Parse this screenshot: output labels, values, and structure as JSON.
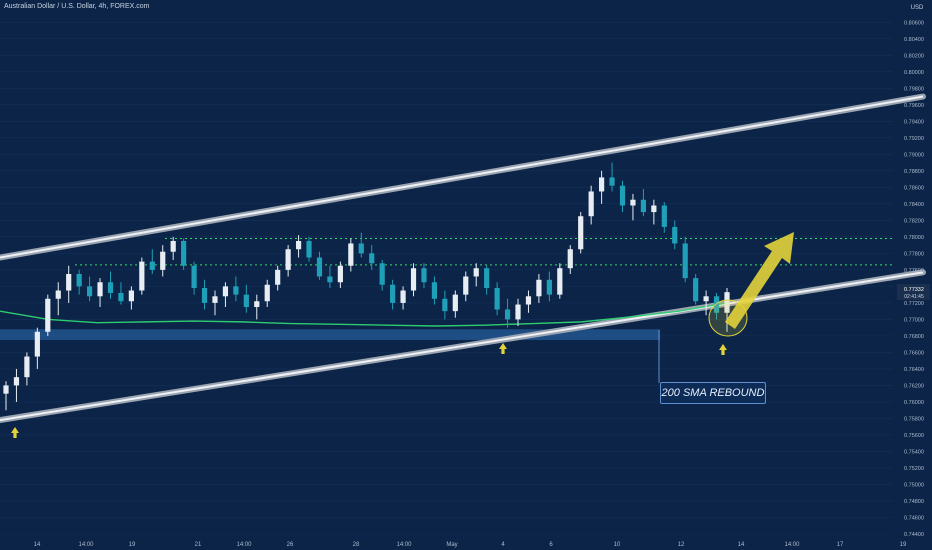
{
  "header": {
    "title": "Australian Dollar / U.S. Dollar, 4h, FOREX.com"
  },
  "axis": {
    "currency": "USD",
    "price_ticks": [
      "0.80600",
      "0.80400",
      "0.80200",
      "0.80000",
      "0.79800",
      "0.79600",
      "0.79400",
      "0.79200",
      "0.79000",
      "0.78800",
      "0.78600",
      "0.78400",
      "0.78200",
      "0.78000",
      "0.77800",
      "0.77600",
      "0.77400",
      "0.77200",
      "0.77000",
      "0.76800",
      "0.76600",
      "0.76400",
      "0.76200",
      "0.76000",
      "0.75800",
      "0.75600",
      "0.75400",
      "0.75200",
      "0.75000",
      "0.74800",
      "0.74600",
      "0.74400"
    ],
    "time_ticks": [
      "14",
      "14:00",
      "19",
      "21",
      "14:00",
      "26",
      "28",
      "14:00",
      "May",
      "4",
      "6",
      "10",
      "12",
      "14",
      "14:00",
      "17",
      "19"
    ],
    "current_price": "0.77332",
    "countdown": "02:41:45"
  },
  "annotation": {
    "label": "200 SMA REBOUND"
  },
  "colors": {
    "background": "#0b2447",
    "up": "#e8edf3",
    "down": "#1fa0b8",
    "sma": "#2ecc71",
    "arrow": "#e3d33a",
    "channel": "#c8ccd4",
    "level": "#3bd86b"
  },
  "chart_data": {
    "type": "candlestick",
    "title": "Australian Dollar / U.S. Dollar, 4h, FOREX.com",
    "ylabel": "USD",
    "ylim": [
      0.744,
      0.807
    ],
    "levels": [
      0.7798,
      0.7766
    ],
    "support_zone": [
      0.7675,
      0.7688
    ],
    "channel_upper": [
      [
        0.7775,
        0.797
      ]
    ],
    "channel_lower": [
      [
        0.7578,
        0.7757
      ]
    ],
    "sma200": [
      0.771,
      0.77,
      0.7696,
      0.7697,
      0.7698,
      0.7697,
      0.7695,
      0.7694,
      0.7693,
      0.7692,
      0.7693,
      0.7695,
      0.7697,
      0.7703,
      0.771,
      0.772
    ],
    "candles": [
      {
        "o": 0.761,
        "h": 0.7625,
        "l": 0.759,
        "c": 0.762
      },
      {
        "o": 0.762,
        "h": 0.764,
        "l": 0.76,
        "c": 0.763
      },
      {
        "o": 0.763,
        "h": 0.766,
        "l": 0.762,
        "c": 0.7655
      },
      {
        "o": 0.7655,
        "h": 0.769,
        "l": 0.764,
        "c": 0.7685
      },
      {
        "o": 0.7685,
        "h": 0.773,
        "l": 0.768,
        "c": 0.7725
      },
      {
        "o": 0.7725,
        "h": 0.7745,
        "l": 0.7705,
        "c": 0.7735
      },
      {
        "o": 0.7735,
        "h": 0.7765,
        "l": 0.772,
        "c": 0.7755
      },
      {
        "o": 0.7755,
        "h": 0.776,
        "l": 0.773,
        "c": 0.774
      },
      {
        "o": 0.774,
        "h": 0.7752,
        "l": 0.7722,
        "c": 0.7728
      },
      {
        "o": 0.7728,
        "h": 0.775,
        "l": 0.7715,
        "c": 0.7745
      },
      {
        "o": 0.7745,
        "h": 0.7758,
        "l": 0.7725,
        "c": 0.7732
      },
      {
        "o": 0.7732,
        "h": 0.7745,
        "l": 0.7718,
        "c": 0.7722
      },
      {
        "o": 0.7722,
        "h": 0.774,
        "l": 0.7712,
        "c": 0.7735
      },
      {
        "o": 0.7735,
        "h": 0.7775,
        "l": 0.773,
        "c": 0.777
      },
      {
        "o": 0.777,
        "h": 0.7785,
        "l": 0.7755,
        "c": 0.776
      },
      {
        "o": 0.776,
        "h": 0.779,
        "l": 0.7752,
        "c": 0.7782
      },
      {
        "o": 0.7782,
        "h": 0.78,
        "l": 0.7772,
        "c": 0.7795
      },
      {
        "o": 0.7795,
        "h": 0.7798,
        "l": 0.776,
        "c": 0.7765
      },
      {
        "o": 0.7765,
        "h": 0.777,
        "l": 0.773,
        "c": 0.7738
      },
      {
        "o": 0.7738,
        "h": 0.7748,
        "l": 0.7712,
        "c": 0.772
      },
      {
        "o": 0.772,
        "h": 0.7735,
        "l": 0.7705,
        "c": 0.7728
      },
      {
        "o": 0.7728,
        "h": 0.7745,
        "l": 0.7715,
        "c": 0.774
      },
      {
        "o": 0.774,
        "h": 0.7752,
        "l": 0.7722,
        "c": 0.773
      },
      {
        "o": 0.773,
        "h": 0.7742,
        "l": 0.7708,
        "c": 0.7715
      },
      {
        "o": 0.7715,
        "h": 0.773,
        "l": 0.77,
        "c": 0.7722
      },
      {
        "o": 0.7722,
        "h": 0.7748,
        "l": 0.7715,
        "c": 0.7742
      },
      {
        "o": 0.7742,
        "h": 0.7765,
        "l": 0.7735,
        "c": 0.776
      },
      {
        "o": 0.776,
        "h": 0.779,
        "l": 0.7752,
        "c": 0.7785
      },
      {
        "o": 0.7785,
        "h": 0.7802,
        "l": 0.7775,
        "c": 0.7795
      },
      {
        "o": 0.7795,
        "h": 0.78,
        "l": 0.777,
        "c": 0.7775
      },
      {
        "o": 0.7775,
        "h": 0.7782,
        "l": 0.7748,
        "c": 0.7752
      },
      {
        "o": 0.7752,
        "h": 0.7765,
        "l": 0.7738,
        "c": 0.7745
      },
      {
        "o": 0.7745,
        "h": 0.777,
        "l": 0.7738,
        "c": 0.7765
      },
      {
        "o": 0.7765,
        "h": 0.7798,
        "l": 0.7758,
        "c": 0.7792
      },
      {
        "o": 0.7792,
        "h": 0.7805,
        "l": 0.7775,
        "c": 0.778
      },
      {
        "o": 0.778,
        "h": 0.779,
        "l": 0.776,
        "c": 0.7768
      },
      {
        "o": 0.7768,
        "h": 0.7772,
        "l": 0.7735,
        "c": 0.7742
      },
      {
        "o": 0.7742,
        "h": 0.7748,
        "l": 0.7712,
        "c": 0.772
      },
      {
        "o": 0.772,
        "h": 0.774,
        "l": 0.7712,
        "c": 0.7735
      },
      {
        "o": 0.7735,
        "h": 0.7768,
        "l": 0.7728,
        "c": 0.7762
      },
      {
        "o": 0.7762,
        "h": 0.7768,
        "l": 0.7738,
        "c": 0.7745
      },
      {
        "o": 0.7745,
        "h": 0.7752,
        "l": 0.7718,
        "c": 0.7725
      },
      {
        "o": 0.7725,
        "h": 0.7735,
        "l": 0.77,
        "c": 0.771
      },
      {
        "o": 0.771,
        "h": 0.7735,
        "l": 0.7702,
        "c": 0.773
      },
      {
        "o": 0.773,
        "h": 0.7758,
        "l": 0.7722,
        "c": 0.7752
      },
      {
        "o": 0.7752,
        "h": 0.7768,
        "l": 0.774,
        "c": 0.7762
      },
      {
        "o": 0.7762,
        "h": 0.7765,
        "l": 0.773,
        "c": 0.7738
      },
      {
        "o": 0.7738,
        "h": 0.7745,
        "l": 0.7705,
        "c": 0.7712
      },
      {
        "o": 0.7712,
        "h": 0.7725,
        "l": 0.769,
        "c": 0.77
      },
      {
        "o": 0.77,
        "h": 0.7725,
        "l": 0.7692,
        "c": 0.7718
      },
      {
        "o": 0.7718,
        "h": 0.7735,
        "l": 0.7708,
        "c": 0.7728
      },
      {
        "o": 0.7728,
        "h": 0.7755,
        "l": 0.772,
        "c": 0.7748
      },
      {
        "o": 0.7748,
        "h": 0.7758,
        "l": 0.7722,
        "c": 0.773
      },
      {
        "o": 0.773,
        "h": 0.7768,
        "l": 0.7725,
        "c": 0.7762
      },
      {
        "o": 0.7762,
        "h": 0.779,
        "l": 0.7755,
        "c": 0.7785
      },
      {
        "o": 0.7785,
        "h": 0.783,
        "l": 0.778,
        "c": 0.7825
      },
      {
        "o": 0.7825,
        "h": 0.7862,
        "l": 0.7815,
        "c": 0.7855
      },
      {
        "o": 0.7855,
        "h": 0.788,
        "l": 0.784,
        "c": 0.7872
      },
      {
        "o": 0.7872,
        "h": 0.789,
        "l": 0.7855,
        "c": 0.7862
      },
      {
        "o": 0.7862,
        "h": 0.7868,
        "l": 0.783,
        "c": 0.7838
      },
      {
        "o": 0.7838,
        "h": 0.7852,
        "l": 0.782,
        "c": 0.7845
      },
      {
        "o": 0.7845,
        "h": 0.7858,
        "l": 0.7825,
        "c": 0.783
      },
      {
        "o": 0.783,
        "h": 0.7845,
        "l": 0.7815,
        "c": 0.7838
      },
      {
        "o": 0.7838,
        "h": 0.7842,
        "l": 0.7805,
        "c": 0.7812
      },
      {
        "o": 0.7812,
        "h": 0.782,
        "l": 0.7785,
        "c": 0.7792
      },
      {
        "o": 0.7792,
        "h": 0.78,
        "l": 0.7745,
        "c": 0.775
      },
      {
        "o": 0.775,
        "h": 0.7755,
        "l": 0.7718,
        "c": 0.7722
      },
      {
        "o": 0.7722,
        "h": 0.7735,
        "l": 0.7705,
        "c": 0.7728
      },
      {
        "o": 0.7728,
        "h": 0.7732,
        "l": 0.77,
        "c": 0.7708
      },
      {
        "o": 0.7708,
        "h": 0.7738,
        "l": 0.7685,
        "c": 0.7733
      }
    ]
  }
}
